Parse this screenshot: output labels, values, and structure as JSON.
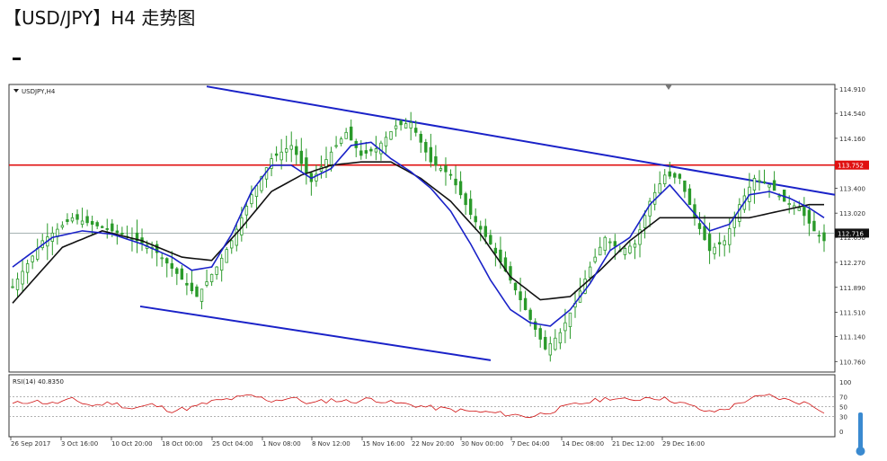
{
  "page": {
    "title": "【USD/JPY】H4 走势图"
  },
  "chart_data": {
    "type": "candlestick",
    "symbol_label": "USDJPY,H4",
    "ylim": [
      110.6,
      114.98
    ],
    "y_ticks": [
      114.91,
      114.54,
      114.16,
      113.4,
      113.02,
      112.65,
      112.27,
      111.89,
      111.51,
      111.14,
      110.76
    ],
    "y_tick_labels": [
      "114.910",
      "114.540",
      "114.160",
      "113.400",
      "113.020",
      "112.650",
      "112.270",
      "111.890",
      "111.510",
      "111.140",
      "110.760"
    ],
    "x_labels": [
      "26 Sep 2017",
      "3 Oct 16:00",
      "10 Oct 20:00",
      "18 Oct 00:00",
      "25 Oct 04:00",
      "1 Nov 08:00",
      "8 Nov 12:00",
      "15 Nov 16:00",
      "22 Nov 20:00",
      "30 Nov 00:00",
      "7 Dec 04:00",
      "14 Dec 08:00",
      "21 Dec 12:00",
      "29 Dec 16:00"
    ],
    "resistance": {
      "value": 113.752,
      "label": "113.752"
    },
    "current": {
      "value": 112.716,
      "label": "112.716"
    },
    "upper_channel": {
      "start": {
        "x": "25 Sep",
        "y": 114.95
      },
      "end": {
        "x": "1 Jan",
        "y": 113.3
      }
    },
    "lower_channel": {
      "start": {
        "x": "12 Oct",
        "y": 111.6
      },
      "end": {
        "x": "30 Nov",
        "y": 110.78
      }
    },
    "price_path": [
      [
        0,
        111.9
      ],
      [
        6,
        112.6
      ],
      [
        12,
        112.95
      ],
      [
        18,
        112.8
      ],
      [
        22,
        112.7
      ],
      [
        28,
        112.5
      ],
      [
        33,
        112.1
      ],
      [
        37,
        111.75
      ],
      [
        41,
        112.2
      ],
      [
        44,
        112.6
      ],
      [
        48,
        113.3
      ],
      [
        52,
        113.85
      ],
      [
        56,
        114.05
      ],
      [
        60,
        113.5
      ],
      [
        64,
        113.95
      ],
      [
        67,
        114.25
      ],
      [
        70,
        113.9
      ],
      [
        73,
        114.0
      ],
      [
        77,
        114.35
      ],
      [
        80,
        114.4
      ],
      [
        84,
        113.8
      ],
      [
        88,
        113.6
      ],
      [
        92,
        113.0
      ],
      [
        96,
        112.55
      ],
      [
        100,
        112.0
      ],
      [
        104,
        111.4
      ],
      [
        107,
        110.95
      ],
      [
        110,
        111.2
      ],
      [
        113,
        111.65
      ],
      [
        116,
        112.2
      ],
      [
        119,
        112.65
      ],
      [
        122,
        112.45
      ],
      [
        125,
        112.55
      ],
      [
        128,
        113.2
      ],
      [
        131,
        113.6
      ],
      [
        134,
        113.55
      ],
      [
        137,
        112.95
      ],
      [
        140,
        112.45
      ],
      [
        143,
        112.6
      ],
      [
        146,
        113.15
      ],
      [
        149,
        113.55
      ],
      [
        152,
        113.45
      ],
      [
        155,
        113.2
      ],
      [
        158,
        113.1
      ],
      [
        161,
        112.75
      ],
      [
        163,
        112.6
      ]
    ],
    "ma_fast_path": [
      [
        0,
        112.2
      ],
      [
        8,
        112.65
      ],
      [
        14,
        112.75
      ],
      [
        20,
        112.7
      ],
      [
        26,
        112.55
      ],
      [
        32,
        112.35
      ],
      [
        36,
        112.15
      ],
      [
        40,
        112.2
      ],
      [
        44,
        112.7
      ],
      [
        48,
        113.35
      ],
      [
        52,
        113.75
      ],
      [
        56,
        113.75
      ],
      [
        60,
        113.55
      ],
      [
        64,
        113.7
      ],
      [
        68,
        114.05
      ],
      [
        72,
        114.1
      ],
      [
        76,
        113.85
      ],
      [
        80,
        113.65
      ],
      [
        84,
        113.4
      ],
      [
        88,
        113.05
      ],
      [
        92,
        112.55
      ],
      [
        96,
        112.0
      ],
      [
        100,
        111.55
      ],
      [
        104,
        111.35
      ],
      [
        108,
        111.3
      ],
      [
        112,
        111.55
      ],
      [
        116,
        111.95
      ],
      [
        120,
        112.45
      ],
      [
        124,
        112.65
      ],
      [
        128,
        113.15
      ],
      [
        132,
        113.45
      ],
      [
        136,
        113.1
      ],
      [
        140,
        112.75
      ],
      [
        144,
        112.85
      ],
      [
        148,
        113.3
      ],
      [
        152,
        113.35
      ],
      [
        156,
        113.25
      ],
      [
        160,
        113.1
      ],
      [
        163,
        112.95
      ]
    ],
    "ma_slow_path": [
      [
        0,
        111.65
      ],
      [
        10,
        112.5
      ],
      [
        18,
        112.75
      ],
      [
        26,
        112.6
      ],
      [
        34,
        112.35
      ],
      [
        40,
        112.3
      ],
      [
        46,
        112.8
      ],
      [
        52,
        113.35
      ],
      [
        58,
        113.6
      ],
      [
        64,
        113.75
      ],
      [
        70,
        113.8
      ],
      [
        76,
        113.8
      ],
      [
        82,
        113.55
      ],
      [
        88,
        113.2
      ],
      [
        94,
        112.7
      ],
      [
        100,
        112.05
      ],
      [
        106,
        111.7
      ],
      [
        112,
        111.75
      ],
      [
        118,
        112.15
      ],
      [
        124,
        112.6
      ],
      [
        130,
        112.95
      ],
      [
        136,
        112.95
      ],
      [
        142,
        112.95
      ],
      [
        148,
        112.95
      ],
      [
        154,
        113.05
      ],
      [
        160,
        113.15
      ],
      [
        163,
        113.15
      ]
    ],
    "rsi": {
      "label": "RSI(14) 40.8350",
      "ylim": [
        0,
        100
      ],
      "levels": [
        70,
        50,
        30
      ],
      "tick_labels": [
        "100",
        "70",
        "50",
        "30",
        "0"
      ],
      "path": [
        [
          0,
          55
        ],
        [
          4,
          62
        ],
        [
          8,
          56
        ],
        [
          12,
          64
        ],
        [
          16,
          52
        ],
        [
          20,
          58
        ],
        [
          24,
          46
        ],
        [
          28,
          54
        ],
        [
          32,
          42
        ],
        [
          36,
          48
        ],
        [
          40,
          60
        ],
        [
          44,
          66
        ],
        [
          48,
          72
        ],
        [
          52,
          62
        ],
        [
          56,
          68
        ],
        [
          60,
          56
        ],
        [
          64,
          64
        ],
        [
          68,
          60
        ],
        [
          72,
          66
        ],
        [
          76,
          58
        ],
        [
          80,
          54
        ],
        [
          84,
          48
        ],
        [
          88,
          44
        ],
        [
          92,
          40
        ],
        [
          96,
          38
        ],
        [
          100,
          34
        ],
        [
          104,
          30
        ],
        [
          108,
          40
        ],
        [
          112,
          52
        ],
        [
          116,
          60
        ],
        [
          120,
          68
        ],
        [
          124,
          62
        ],
        [
          128,
          70
        ],
        [
          132,
          64
        ],
        [
          136,
          52
        ],
        [
          140,
          38
        ],
        [
          144,
          48
        ],
        [
          148,
          66
        ],
        [
          152,
          72
        ],
        [
          156,
          62
        ],
        [
          160,
          56
        ],
        [
          163,
          41
        ]
      ]
    }
  }
}
